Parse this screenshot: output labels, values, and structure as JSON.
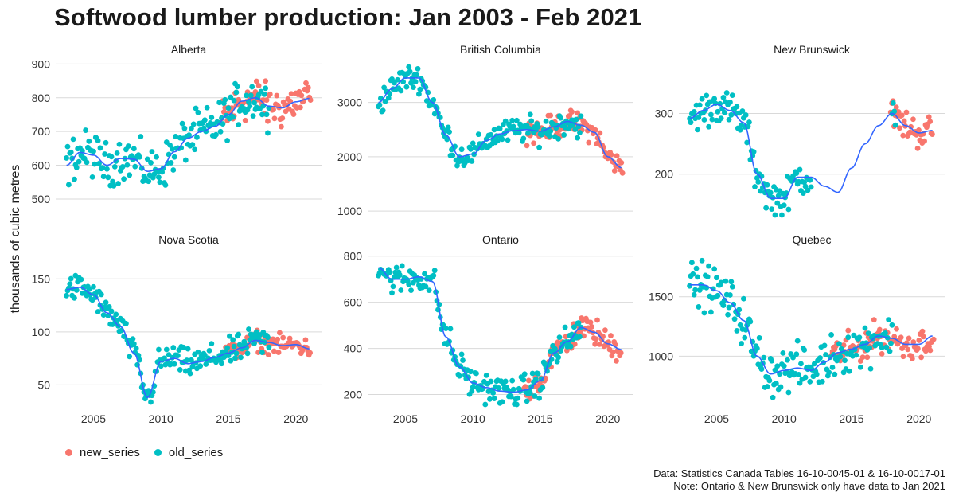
{
  "title": "Softwood lumber production: Jan 2003 - Feb 2021",
  "ylabel": "thousands of cubic metres",
  "caption_lines": [
    "Data: Statistics Canada Tables 16-10-0045-01 & 16-10-0017-01",
    "Note: Ontario & New Brunswick only have data to Jan 2021"
  ],
  "legend": [
    {
      "name": "new_series",
      "color": "#F8766D"
    },
    {
      "name": "old_series",
      "color": "#00BFC4"
    }
  ],
  "colors": {
    "new_series": "#F8766D",
    "old_series": "#00BFC4",
    "smooth": "#3366FF",
    "grid": "#d9d9d9"
  },
  "chart_data": [
    {
      "type": "scatter",
      "panel": "Alberta",
      "xlim": [
        2002.2,
        2021.9
      ],
      "ylim": [
        448,
        915
      ],
      "xticks": [
        "2005",
        "2010",
        "2015",
        "2020"
      ],
      "yticks": [
        "500",
        "600",
        "700",
        "800",
        "900"
      ],
      "trend": [
        [
          2003,
          600
        ],
        [
          2004,
          638
        ],
        [
          2005,
          630
        ],
        [
          2006,
          600
        ],
        [
          2007,
          620
        ],
        [
          2008,
          618
        ],
        [
          2009,
          582
        ],
        [
          2010,
          590
        ],
        [
          2011,
          640
        ],
        [
          2012,
          680
        ],
        [
          2013,
          700
        ],
        [
          2014,
          715
        ],
        [
          2015,
          750
        ],
        [
          2016,
          790
        ],
        [
          2017,
          800
        ],
        [
          2018,
          775
        ],
        [
          2019,
          770
        ],
        [
          2020,
          788
        ],
        [
          2021,
          798
        ]
      ],
      "old": {
        "start": 2003.0,
        "end": 2018.0,
        "noise": 55
      },
      "new": {
        "start": 2014.5,
        "end": 2021.1,
        "noise": 55
      }
    },
    {
      "type": "scatter",
      "panel": "British Columbia",
      "xlim": [
        2002.2,
        2021.9
      ],
      "ylim": [
        900,
        3800
      ],
      "xticks": [
        "2005",
        "2010",
        "2015",
        "2020"
      ],
      "yticks": [
        "1000",
        "2000",
        "3000"
      ],
      "trend": [
        [
          2003,
          3000
        ],
        [
          2004,
          3250
        ],
        [
          2005,
          3450
        ],
        [
          2006,
          3450
        ],
        [
          2007,
          3000
        ],
        [
          2008,
          2400
        ],
        [
          2009,
          2000
        ],
        [
          2010,
          2050
        ],
        [
          2011,
          2300
        ],
        [
          2012,
          2420
        ],
        [
          2013,
          2480
        ],
        [
          2014,
          2500
        ],
        [
          2015,
          2470
        ],
        [
          2016,
          2550
        ],
        [
          2017,
          2650
        ],
        [
          2018,
          2580
        ],
        [
          2019,
          2450
        ],
        [
          2020,
          2000
        ],
        [
          2021,
          1800
        ]
      ],
      "old": {
        "start": 2003.0,
        "end": 2018.0,
        "noise": 200
      },
      "new": {
        "start": 2014.0,
        "end": 2021.1,
        "noise": 180
      }
    },
    {
      "type": "scatter",
      "panel": "New Brunswick",
      "xlim": [
        2002.2,
        2021.9
      ],
      "ylim": [
        130,
        390
      ],
      "xticks": [
        "2005",
        "2010",
        "2015",
        "2020"
      ],
      "yticks": [
        "200",
        "300"
      ],
      "trend": [
        [
          2003,
          292
        ],
        [
          2004,
          305
        ],
        [
          2005,
          315
        ],
        [
          2006,
          305
        ],
        [
          2007,
          285
        ],
        [
          2008,
          200
        ],
        [
          2009,
          160
        ],
        [
          2010,
          160
        ],
        [
          2011,
          195
        ],
        [
          2012,
          195
        ],
        [
          2013,
          180
        ],
        [
          2014,
          170
        ],
        [
          2015,
          210
        ],
        [
          2016,
          250
        ],
        [
          2017,
          280
        ],
        [
          2018,
          300
        ],
        [
          2019,
          280
        ],
        [
          2020,
          268
        ],
        [
          2021,
          272
        ]
      ],
      "old": {
        "start": 2003.0,
        "end": 2012.0,
        "noise": 25
      },
      "old2": {
        "start": 2018.0,
        "end": 2018.3,
        "noise": 25
      },
      "new": {
        "start": 2017.9,
        "end": 2021.0,
        "noise": 22
      }
    },
    {
      "type": "scatter",
      "panel": "Nova Scotia",
      "xlim": [
        2002.2,
        2021.9
      ],
      "ylim": [
        30,
        178
      ],
      "xticks": [
        "2005",
        "2010",
        "2015",
        "2020"
      ],
      "yticks": [
        "50",
        "100",
        "150"
      ],
      "trend": [
        [
          2003,
          140
        ],
        [
          2004,
          142
        ],
        [
          2005,
          135
        ],
        [
          2006,
          118
        ],
        [
          2007,
          105
        ],
        [
          2008,
          80
        ],
        [
          2009,
          38
        ],
        [
          2010,
          72
        ],
        [
          2011,
          75
        ],
        [
          2012,
          70
        ],
        [
          2013,
          72
        ],
        [
          2014,
          76
        ],
        [
          2015,
          80
        ],
        [
          2016,
          85
        ],
        [
          2017,
          92
        ],
        [
          2018,
          90
        ],
        [
          2019,
          87
        ],
        [
          2020,
          88
        ],
        [
          2021,
          84
        ]
      ],
      "old": {
        "start": 2003.0,
        "end": 2018.0,
        "noise": 11
      },
      "new": {
        "start": 2014.8,
        "end": 2021.1,
        "noise": 8
      }
    },
    {
      "type": "scatter",
      "panel": "Ontario",
      "xlim": [
        2002.2,
        2021.9
      ],
      "ylim": [
        150,
        830
      ],
      "xticks": [
        "2005",
        "2010",
        "2015",
        "2020"
      ],
      "yticks": [
        "200",
        "400",
        "600",
        "800"
      ],
      "trend": [
        [
          2003,
          750
        ],
        [
          2004,
          700
        ],
        [
          2005,
          700
        ],
        [
          2006,
          710
        ],
        [
          2007,
          690
        ],
        [
          2008,
          450
        ],
        [
          2009,
          320
        ],
        [
          2010,
          250
        ],
        [
          2011,
          230
        ],
        [
          2012,
          215
        ],
        [
          2013,
          210
        ],
        [
          2014,
          220
        ],
        [
          2015,
          260
        ],
        [
          2016,
          380
        ],
        [
          2017,
          430
        ],
        [
          2018,
          490
        ],
        [
          2019,
          470
        ],
        [
          2020,
          420
        ],
        [
          2021,
          395
        ]
      ],
      "old": {
        "start": 2003.0,
        "end": 2018.0,
        "noise": 55
      },
      "new": {
        "start": 2013.8,
        "end": 2021.0,
        "noise": 50
      }
    },
    {
      "type": "scatter",
      "panel": "Quebec",
      "xlim": [
        2002.2,
        2021.9
      ],
      "ylim": [
        580,
        1900
      ],
      "xticks": [
        "2005",
        "2010",
        "2015",
        "2020"
      ],
      "yticks": [
        "1000",
        "1500"
      ],
      "trend": [
        [
          2003,
          1600
        ],
        [
          2004,
          1600
        ],
        [
          2005,
          1550
        ],
        [
          2006,
          1450
        ],
        [
          2007,
          1300
        ],
        [
          2008,
          1000
        ],
        [
          2009,
          850
        ],
        [
          2010,
          880
        ],
        [
          2011,
          900
        ],
        [
          2012,
          880
        ],
        [
          2013,
          950
        ],
        [
          2014,
          1030
        ],
        [
          2015,
          1060
        ],
        [
          2016,
          1100
        ],
        [
          2017,
          1170
        ],
        [
          2018,
          1150
        ],
        [
          2019,
          1100
        ],
        [
          2020,
          1100
        ],
        [
          2021,
          1170
        ]
      ],
      "old": {
        "start": 2003.0,
        "end": 2018.0,
        "noise": 160
      },
      "new": {
        "start": 2013.5,
        "end": 2021.1,
        "noise": 110
      }
    }
  ]
}
